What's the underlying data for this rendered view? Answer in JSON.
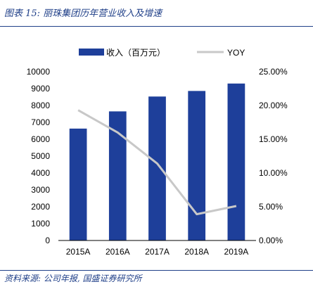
{
  "header": {
    "title": "图表 15:  丽珠集团历年营业收入及增速"
  },
  "footer": {
    "source": "资料来源: 公司年报, 国盛证券研究所"
  },
  "chart_data": {
    "type": "bar",
    "categories": [
      "2015A",
      "2016A",
      "2017A",
      "2018A",
      "2019A"
    ],
    "series": [
      {
        "name": "收入（百万元）",
        "type": "bar",
        "axis": "left",
        "color": "#1e3f9a",
        "values": [
          6630,
          7650,
          8530,
          8860,
          9300
        ]
      },
      {
        "name": "YOY",
        "type": "line",
        "axis": "right",
        "color": "#c8c8c8",
        "values": [
          0.193,
          0.16,
          0.114,
          0.039,
          0.051
        ]
      }
    ],
    "ylim": [
      0,
      10000
    ],
    "yticks": [
      "0",
      "1000",
      "2000",
      "3000",
      "4000",
      "5000",
      "6000",
      "7000",
      "8000",
      "9000",
      "10000"
    ],
    "y2lim": [
      0,
      0.25
    ],
    "y2ticks": [
      "0.00%",
      "5.00%",
      "10.00%",
      "15.00%",
      "20.00%",
      "25.00%"
    ],
    "legend": "top",
    "grid": false
  }
}
